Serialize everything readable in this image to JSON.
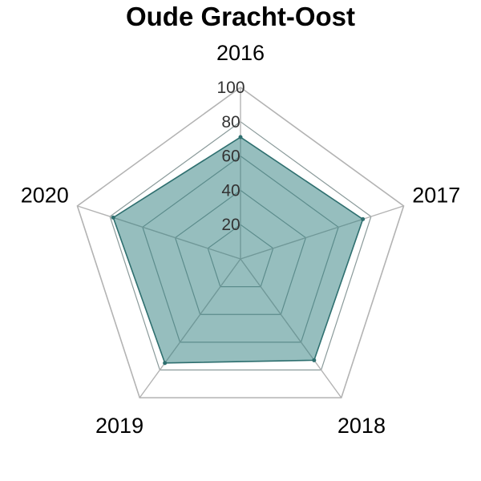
{
  "chart_data": {
    "type": "radar",
    "title": "Oude Gracht-Oost",
    "categories": [
      "2016",
      "2017",
      "2018",
      "2019",
      "2020"
    ],
    "values": [
      71,
      75,
      73,
      75,
      78
    ],
    "rlim": [
      0,
      100
    ],
    "ticks": [
      "20",
      "40",
      "60",
      "80",
      "100"
    ],
    "grid": true,
    "colors": {
      "fill": "#2e7d7d",
      "stroke": "#2e6f6f",
      "grid_outer": "#b3b3b3",
      "grid_inner": "#8a9a9a"
    }
  }
}
